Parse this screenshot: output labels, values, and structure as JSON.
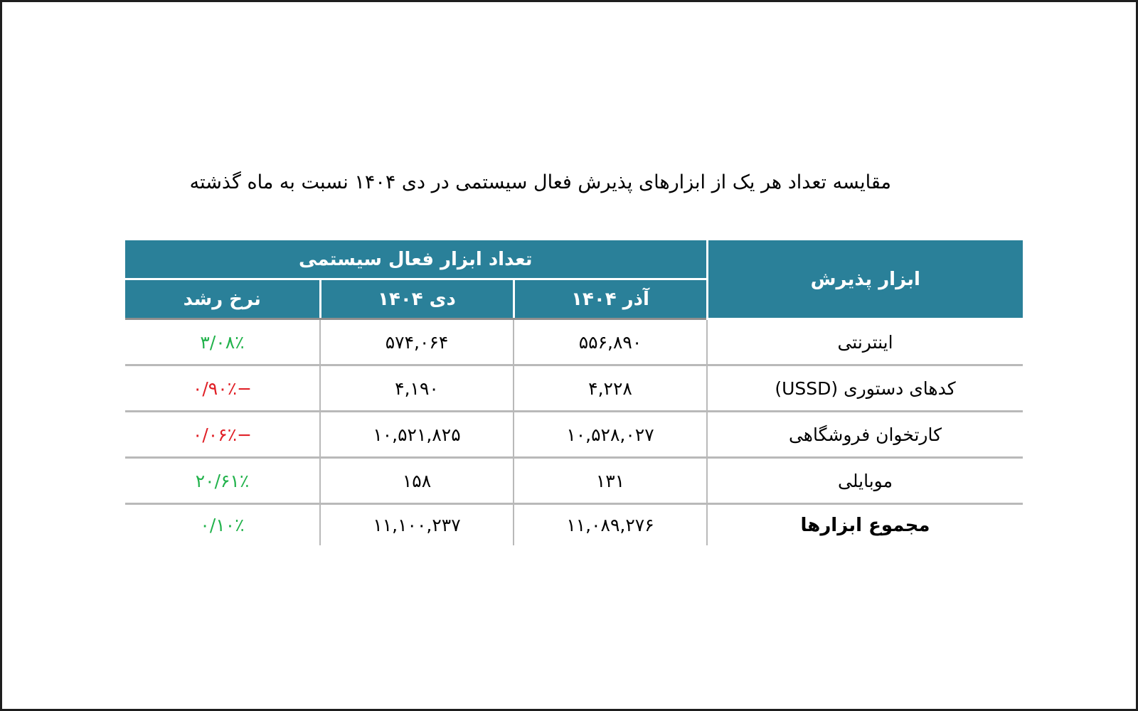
{
  "title": "مقایسه تعداد هر یک از ابزارهای پذیرش فعال سیستمی در دی ۱۴۰۴ نسبت به ماه گذشته",
  "table": {
    "headers": {
      "tool": "ابزار پذیرش",
      "group": "تعداد ابزار فعال سیستمی",
      "azar": "آذر ۱۴۰۴",
      "dey": "دی ۱۴۰۴",
      "growth": "نرخ رشد"
    },
    "rows": [
      {
        "tool": "اینترنتی",
        "azar": "۵۵۶,۸۹۰",
        "dey": "۵۷۴,۰۶۴",
        "growth": "۳/۰۸٪",
        "trend": "positive"
      },
      {
        "tool": "کدهای دستوری (USSD)",
        "azar": "۴,۲۲۸",
        "dey": "۴,۱۹۰",
        "growth": "−۰/۹۰٪",
        "trend": "negative"
      },
      {
        "tool": "کارتخوان فروشگاهی",
        "azar": "۱۰,۵۲۸,۰۲۷",
        "dey": "۱۰,۵۲۱,۸۲۵",
        "growth": "−۰/۰۶٪",
        "trend": "negative"
      },
      {
        "tool": "موبایلی",
        "azar": "۱۳۱",
        "dey": "۱۵۸",
        "growth": "۲۰/۶۱٪",
        "trend": "positive"
      }
    ],
    "total": {
      "tool": "مجموع ابزارها",
      "azar": "۱۱,۰۸۹,۲۷۶",
      "dey": "۱۱,۱۰۰,۲۳۷",
      "growth": "۰/۱۰٪",
      "trend": "positive"
    }
  },
  "colors": {
    "header_bg": "#2a8099",
    "positive": "#21b24b",
    "negative": "#e01f26"
  }
}
